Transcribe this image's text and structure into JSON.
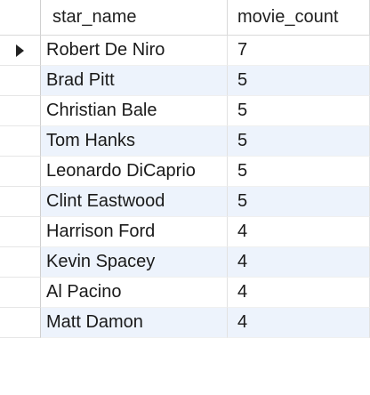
{
  "columns": {
    "name": "star_name",
    "count": "movie_count"
  },
  "rows": [
    {
      "star_name": "Robert De Niro",
      "movie_count": "7"
    },
    {
      "star_name": "Brad Pitt",
      "movie_count": "5"
    },
    {
      "star_name": "Christian Bale",
      "movie_count": "5"
    },
    {
      "star_name": "Tom Hanks",
      "movie_count": "5"
    },
    {
      "star_name": "Leonardo DiCaprio",
      "movie_count": "5"
    },
    {
      "star_name": "Clint Eastwood",
      "movie_count": "5"
    },
    {
      "star_name": "Harrison Ford",
      "movie_count": "4"
    },
    {
      "star_name": "Kevin Spacey",
      "movie_count": "4"
    },
    {
      "star_name": "Al Pacino",
      "movie_count": "4"
    },
    {
      "star_name": "Matt Damon",
      "movie_count": "4"
    }
  ],
  "current_row_icon": "current-row-arrow-icon",
  "colors": {
    "alt_row": "#edf3fc",
    "grid_line": "#d9d9d9"
  }
}
